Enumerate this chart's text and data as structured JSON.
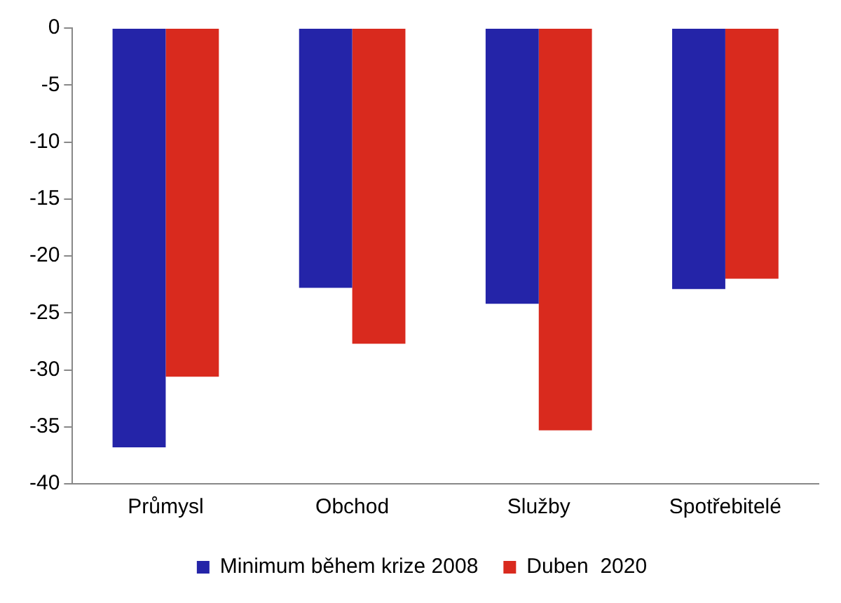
{
  "chart_data": {
    "type": "bar",
    "categories": [
      "Průmysl",
      "Obchod",
      "Služby",
      "Spotřebitelé"
    ],
    "series": [
      {
        "name": "Minimum během krize 2008",
        "color": "#2424a8",
        "values": [
          -36.8,
          -22.8,
          -24.2,
          -22.9
        ]
      },
      {
        "name": "Duben  2020",
        "color": "#d92a1e",
        "values": [
          -30.6,
          -27.7,
          -35.3,
          -22.0
        ]
      }
    ],
    "ylim": [
      -40,
      0
    ],
    "yticks": [
      0,
      -5,
      -10,
      -15,
      -20,
      -25,
      -30,
      -35,
      -40
    ],
    "grid": false,
    "legend": "bottom"
  }
}
